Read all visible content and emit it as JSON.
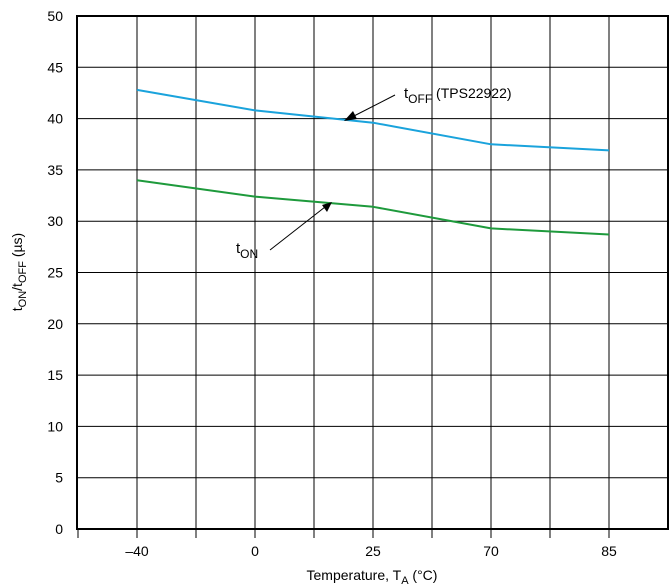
{
  "chart_data": {
    "type": "line",
    "xlabel": "Temperature, T",
    "xlabel_sub": "A",
    "xlabel_unit": " (°C)",
    "ylabel_parts": [
      "t",
      "ON",
      "/t",
      "OFF",
      " (µs)"
    ],
    "categories": [
      "–40",
      "0",
      "25",
      "70",
      "85"
    ],
    "yticks": [
      "0",
      "5",
      "10",
      "15",
      "20",
      "25",
      "30",
      "35",
      "40",
      "45",
      "50"
    ],
    "ylim": [
      0,
      50
    ],
    "grid": true,
    "series": [
      {
        "id": "t_off",
        "color": "#1aa3dc",
        "values": [
          42.8,
          40.8,
          39.6,
          37.5,
          36.9
        ]
      },
      {
        "id": "t_on",
        "color": "#1e9a3c",
        "values": [
          34.0,
          32.4,
          31.4,
          29.3,
          28.7
        ]
      }
    ],
    "annotations": {
      "t_off_label": {
        "t": "t",
        "sub": "OFF",
        "rest": " (TPS22922)"
      },
      "t_on_label": {
        "t": "t",
        "sub": "ON"
      }
    }
  }
}
